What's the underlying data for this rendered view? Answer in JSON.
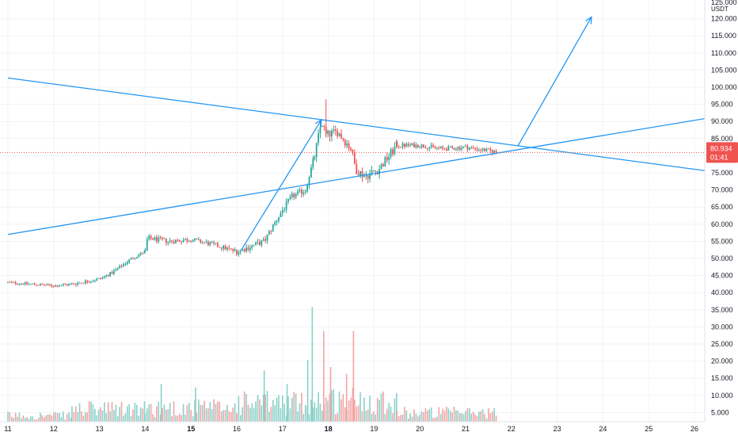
{
  "chart_data": {
    "type": "candlestick",
    "currency": "USDT",
    "last_price": "80.934",
    "countdown": "01:41",
    "y_axis": {
      "ylim": [
        0,
        125
      ],
      "tick_values": [
        5,
        10,
        15,
        20,
        25,
        30,
        35,
        40,
        45,
        50,
        55,
        60,
        65,
        70,
        75,
        80,
        85,
        90,
        95,
        100,
        105,
        110,
        115,
        120,
        125
      ],
      "tick_labels": [
        "5.000",
        "10.000",
        "15.000",
        "20.000",
        "25.000",
        "30.000",
        "35.000",
        "40.000",
        "45.000",
        "50.000",
        "55.000",
        "60.000",
        "65.000",
        "70.000",
        "75.000",
        "80.000",
        "85.000",
        "90.000",
        "95.000",
        "100.000",
        "105.000",
        "110.000",
        "115.000",
        "120.000",
        "125.000"
      ]
    },
    "x_axis": {
      "tick_values": [
        11,
        12,
        13,
        14,
        15,
        16,
        17,
        18,
        19,
        20,
        21,
        22,
        23,
        24,
        25,
        26
      ],
      "tick_labels": [
        "11",
        "12",
        "13",
        "14",
        "15",
        "16",
        "17",
        "18",
        "19",
        "20",
        "21",
        "22",
        "23",
        "24",
        "25",
        "26"
      ],
      "bold_ticks": [
        "15",
        "18"
      ],
      "range": [
        11.0,
        26.3
      ]
    },
    "price_segments": [
      {
        "x": [
          11.0,
          12.0,
          12.4
        ],
        "y": [
          43,
          42,
          42.5
        ],
        "vol_base": 2,
        "noise": 0.8
      },
      {
        "x": [
          12.4,
          13.0,
          13.3,
          13.7,
          14.0
        ],
        "y": [
          42.5,
          44,
          46,
          50,
          52
        ],
        "vol_base": 4,
        "noise": 1.0
      },
      {
        "x": [
          14.0,
          14.05,
          14.5,
          15.0,
          15.5,
          16.0
        ],
        "y": [
          52,
          56,
          55,
          55.5,
          54,
          52
        ],
        "vol_base": 4.5,
        "noise": 1.4
      },
      {
        "x": [
          16.0,
          16.6,
          16.9,
          17.2,
          17.5,
          17.7
        ],
        "y": [
          52,
          55,
          62,
          68,
          70,
          80
        ],
        "vol_base": 6,
        "noise": 1.8
      },
      {
        "x": [
          17.7,
          17.85,
          17.95,
          18.2,
          18.5,
          18.6,
          18.8,
          19.1,
          19.5
        ],
        "y": [
          80,
          90,
          86,
          87,
          82,
          76,
          74,
          76,
          83
        ],
        "vol_base": 7,
        "noise": 2.6
      },
      {
        "x": [
          19.5,
          20.0,
          20.5,
          21.0,
          21.7
        ],
        "y": [
          83,
          83,
          82,
          82.5,
          81
        ],
        "vol_base": 3,
        "noise": 1.3
      }
    ],
    "volume_spikes": [
      {
        "x": 17.65,
        "volume": 33.5,
        "dir": "up"
      },
      {
        "x": 17.9,
        "volume": 26.5,
        "dir": "down"
      },
      {
        "x": 18.55,
        "volume": 26.5,
        "dir": "down"
      },
      {
        "x": 17.55,
        "volume": 18,
        "dir": "up"
      },
      {
        "x": 16.6,
        "volume": 15,
        "dir": "up"
      },
      {
        "x": 18.4,
        "volume": 14,
        "dir": "down"
      },
      {
        "x": 17.1,
        "volume": 11,
        "dir": "up"
      },
      {
        "x": 18.05,
        "volume": 16,
        "dir": "down"
      },
      {
        "x": 15.1,
        "volume": 10,
        "dir": "up"
      },
      {
        "x": 14.35,
        "volume": 11,
        "dir": "up"
      }
    ],
    "drawings": [
      {
        "kind": "line",
        "from": [
          11.0,
          102.7
        ],
        "to": [
          26.3,
          75.5
        ]
      },
      {
        "kind": "line",
        "from": [
          11.0,
          57.0
        ],
        "to": [
          26.3,
          91.0
        ]
      },
      {
        "kind": "arrow",
        "from": [
          16.1,
          52.5
        ],
        "to": [
          17.85,
          90.5
        ]
      },
      {
        "kind": "arrow",
        "from": [
          22.15,
          83.0
        ],
        "to": [
          23.75,
          120.5
        ]
      }
    ],
    "colors": {
      "up": "#26a69a",
      "down": "#ef5350",
      "up_volume": "#8ad1c9",
      "down_volume": "#f5a3a3",
      "drawing": "#2196f3",
      "price_line": "#ef5350",
      "grid": "#f0f3fa",
      "axis_text": "#131722"
    },
    "grid": true
  }
}
